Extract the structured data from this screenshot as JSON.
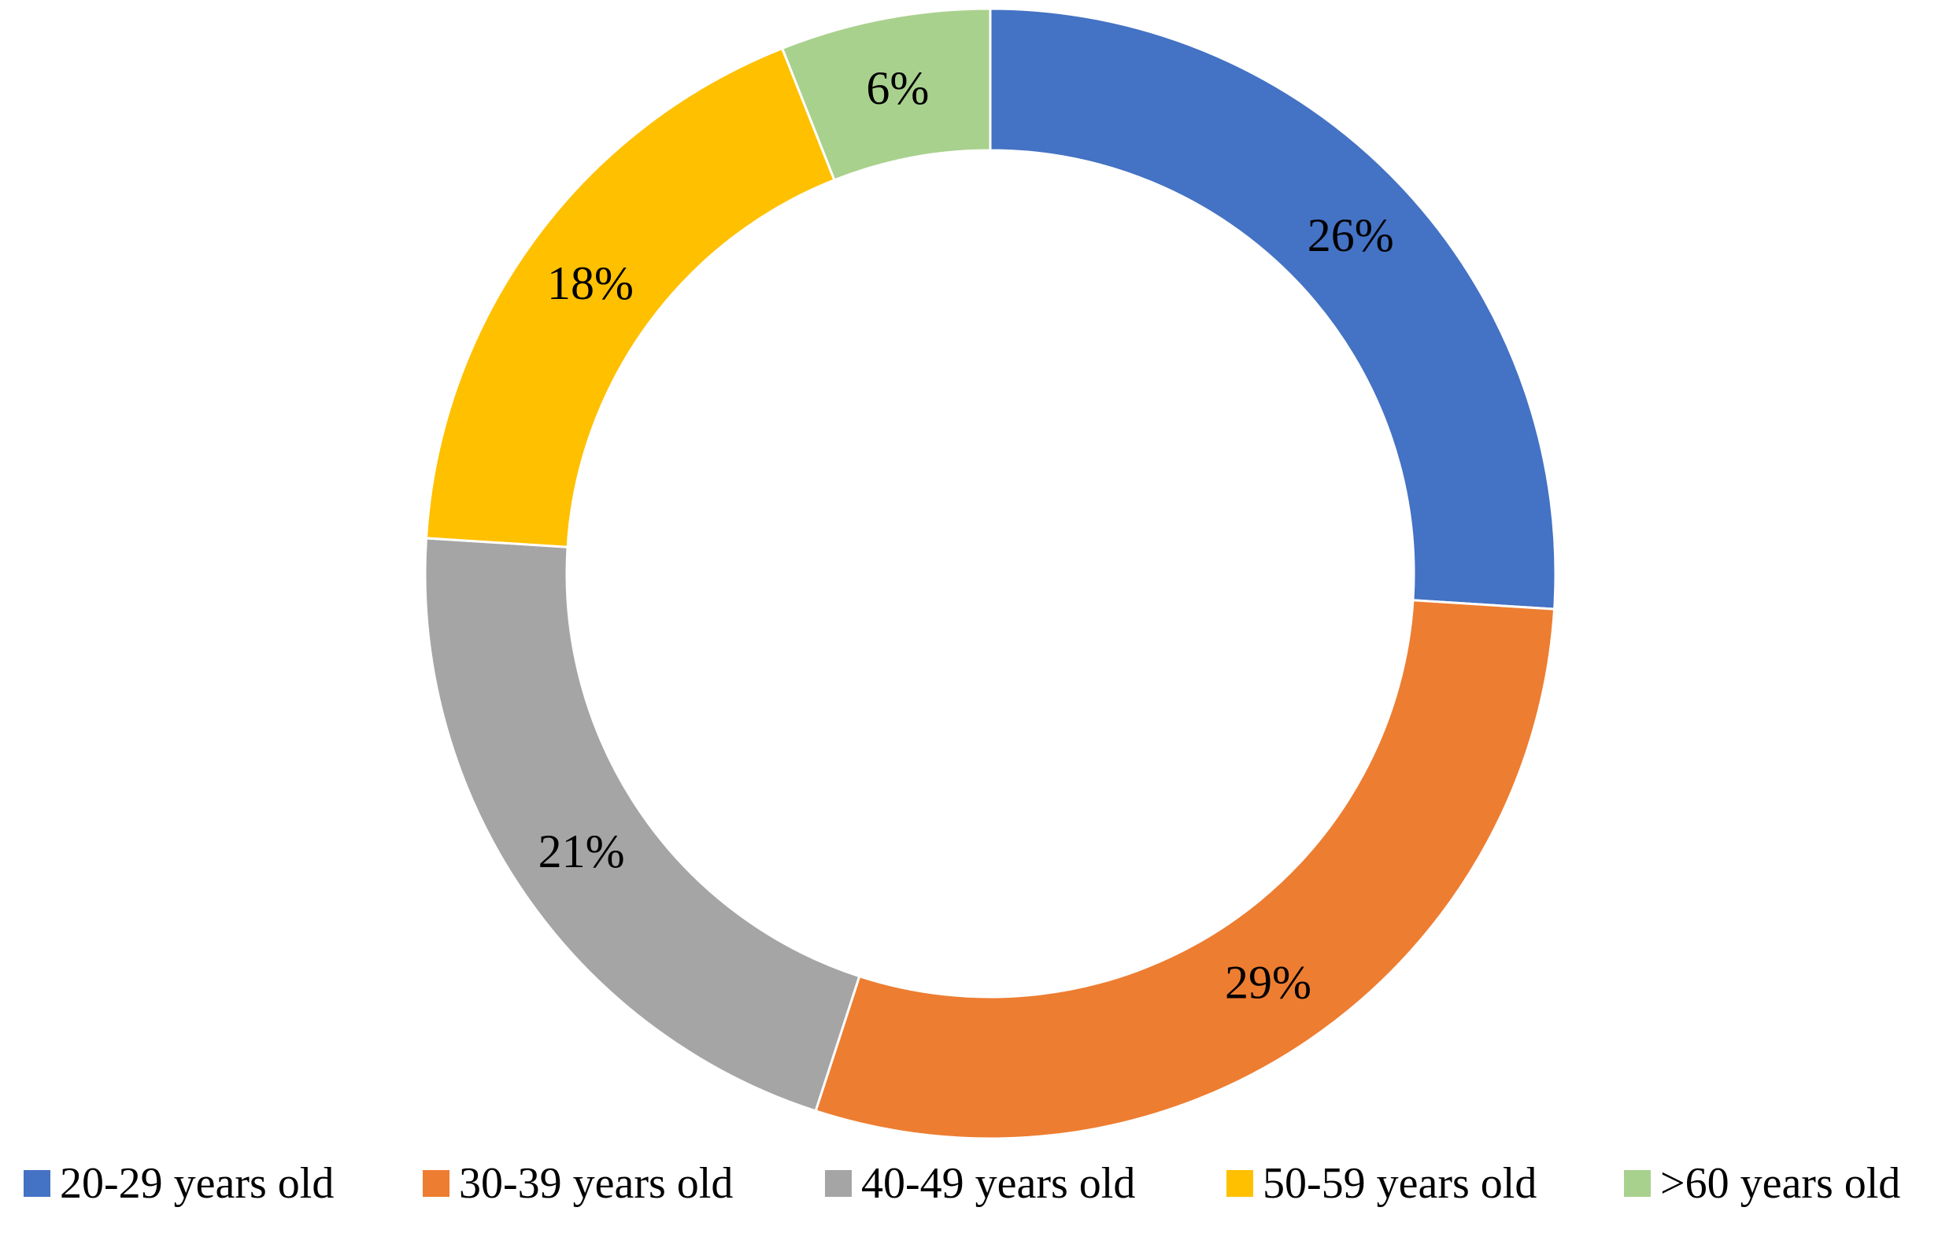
{
  "chart_data": {
    "type": "pie",
    "variant": "donut",
    "title": "",
    "categories": [
      "20-29 years old",
      "30-39 years old",
      "40-49 years old",
      "50-59 years old",
      ">60 years old"
    ],
    "values": [
      26,
      29,
      21,
      18,
      6
    ],
    "labels": [
      "26%",
      "29%",
      "21%",
      "18%",
      "6%"
    ],
    "colors": [
      "#4472C4",
      "#ED7D31",
      "#A5A5A5",
      "#FFC000",
      "#A9D18E"
    ],
    "legend": "bottom",
    "start_angle": "12 o'clock",
    "direction": "clockwise"
  }
}
